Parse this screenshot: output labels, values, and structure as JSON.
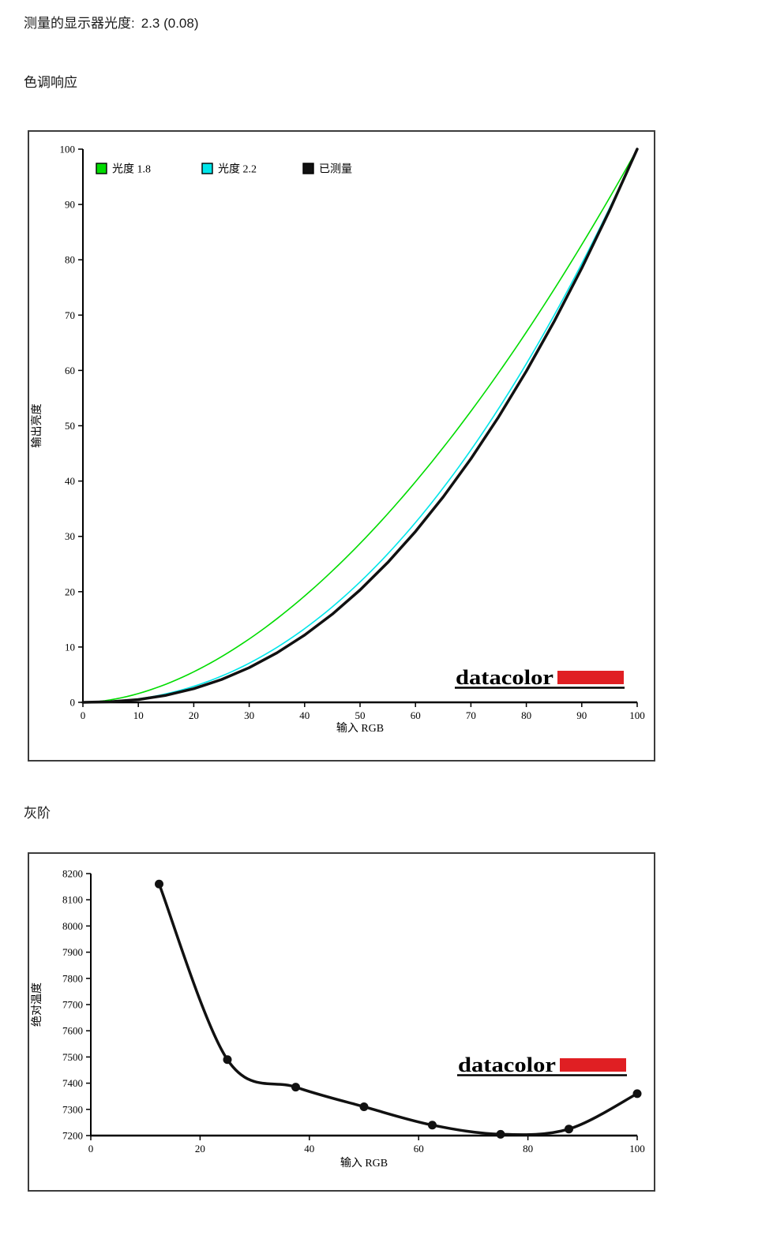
{
  "page": {
    "measured_gamma_label": "测量的显示器光度:",
    "measured_gamma_value": "2.3 (0.08)"
  },
  "sections": {
    "tone_response": {
      "title": "色调响应"
    },
    "grayscale": {
      "title": "灰阶"
    }
  },
  "logo": {
    "text": "datacolor",
    "text_color": "#000000",
    "bar_color": "#e01f23"
  },
  "chart_data": [
    {
      "id": "tone-response",
      "type": "line",
      "title": "",
      "xlabel": "输入  RGB",
      "ylabel": "输出亮度",
      "xlim": [
        0,
        100
      ],
      "ylim": [
        0,
        100
      ],
      "xticks": [
        0,
        10,
        20,
        30,
        40,
        50,
        60,
        70,
        80,
        90,
        100
      ],
      "yticks": [
        0,
        10,
        20,
        30,
        40,
        50,
        60,
        70,
        80,
        90,
        100
      ],
      "grid": false,
      "legend_position": "top-left-inside",
      "series": [
        {
          "name": "光度 1.8",
          "color": "#00dc00",
          "kind": "gamma",
          "gamma": 1.8,
          "width": 1.6
        },
        {
          "name": "光度 2.2",
          "color": "#00e6ea",
          "kind": "gamma",
          "gamma": 2.2,
          "width": 1.6
        },
        {
          "name": "已测量",
          "color": "#111111",
          "kind": "points",
          "width": 3.5,
          "smooth": false,
          "x": [
            0,
            5,
            10,
            15,
            20,
            25,
            30,
            35,
            40,
            45,
            50,
            55,
            60,
            65,
            70,
            75,
            80,
            85,
            90,
            95,
            100
          ],
          "y": [
            0,
            0.1,
            0.5,
            1.27,
            2.47,
            4.12,
            6.27,
            8.94,
            12.16,
            15.94,
            20.31,
            25.28,
            30.88,
            37.13,
            44.03,
            51.6,
            59.86,
            68.81,
            78.48,
            88.87,
            100
          ]
        }
      ]
    },
    {
      "id": "grayscale",
      "type": "line",
      "title": "",
      "xlabel": "输入  RGB",
      "ylabel": "绝对温度",
      "xlim": [
        0,
        100
      ],
      "ylim": [
        7200,
        8200
      ],
      "xticks": [
        0,
        20,
        40,
        60,
        80,
        100
      ],
      "yticks": [
        7200,
        7300,
        7400,
        7500,
        7600,
        7700,
        7800,
        7900,
        8000,
        8100,
        8200
      ],
      "grid": false,
      "legend_position": "none",
      "series": [
        {
          "name": "已测量",
          "color": "#111111",
          "kind": "points",
          "width": 3.5,
          "smooth": true,
          "markers": true,
          "marker_size": 5.5,
          "x": [
            12.5,
            25,
            37.5,
            50,
            62.5,
            75,
            87.5,
            100
          ],
          "y": [
            8160,
            7490,
            7385,
            7310,
            7240,
            7205,
            7225,
            7360
          ]
        }
      ]
    }
  ]
}
